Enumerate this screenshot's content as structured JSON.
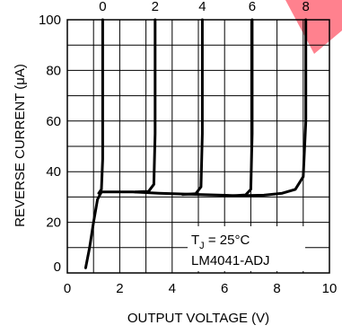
{
  "chart_data": {
    "type": "line",
    "xlabel": "OUTPUT VOLTAGE (V)",
    "ylabel": "REVERSE CURRENT (μA)",
    "xlim": [
      0,
      10
    ],
    "ylim": [
      0,
      100
    ],
    "x_ticks": [
      "0",
      "2",
      "4",
      "6",
      "8",
      "10"
    ],
    "y_ticks": [
      "0",
      "20",
      "40",
      "60",
      "80",
      "100"
    ],
    "x_tick_values": [
      0,
      2,
      4,
      6,
      8,
      10
    ],
    "y_tick_values": [
      0,
      20,
      40,
      60,
      80,
      100
    ],
    "grid": true,
    "top_labels": [
      "0",
      "2",
      "4",
      "6",
      "8"
    ],
    "top_label_x": [
      1.35,
      3.35,
      5.15,
      7.05,
      9.1
    ],
    "annotation_lines": [
      "T",
      "J",
      " = 25°C",
      "LM4041-ADJ"
    ],
    "series": [
      {
        "values": [
          [
            0.7,
            2
          ],
          [
            0.85,
            10
          ],
          [
            1.0,
            20
          ],
          [
            1.15,
            29
          ],
          [
            1.3,
            32
          ],
          [
            1.5,
            32
          ],
          [
            2.5,
            32
          ],
          [
            3.5,
            31.5
          ],
          [
            5.0,
            31
          ],
          [
            6.5,
            30.5
          ],
          [
            7.5,
            30.7
          ],
          [
            8.2,
            31.5
          ],
          [
            8.7,
            33
          ],
          [
            9.0,
            38
          ],
          [
            9.1,
            60
          ],
          [
            9.1,
            100
          ]
        ]
      },
      {
        "values": [
          [
            1.2,
            31.5
          ],
          [
            1.3,
            33
          ],
          [
            1.35,
            45
          ],
          [
            1.35,
            100
          ]
        ]
      },
      {
        "values": [
          [
            2.6,
            32
          ],
          [
            3.1,
            32.2
          ],
          [
            3.3,
            35
          ],
          [
            3.35,
            55
          ],
          [
            3.35,
            100
          ]
        ]
      },
      {
        "values": [
          [
            4.4,
            31
          ],
          [
            4.9,
            31.3
          ],
          [
            5.1,
            34
          ],
          [
            5.15,
            55
          ],
          [
            5.15,
            100
          ]
        ]
      },
      {
        "values": [
          [
            6.3,
            30.5
          ],
          [
            6.8,
            30.8
          ],
          [
            7.0,
            33
          ],
          [
            7.05,
            55
          ],
          [
            7.05,
            100
          ]
        ]
      }
    ]
  },
  "colors": {
    "line": "#000000",
    "grid": "#000000",
    "accent_corner": "#ff6b7a"
  }
}
